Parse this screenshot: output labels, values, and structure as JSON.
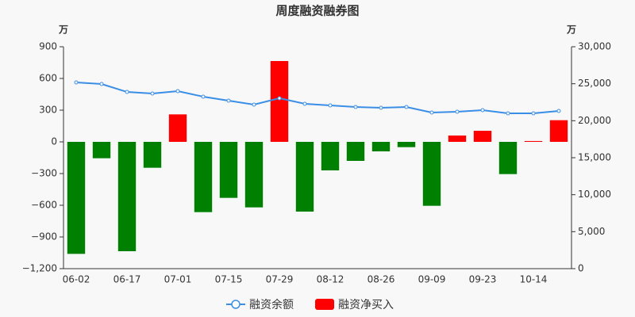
{
  "chart_data": {
    "type": "bar_line",
    "title": "周度融资融券图",
    "y_unit": "万",
    "y2_unit": "万",
    "categories": [
      "06-02",
      null,
      "06-17",
      null,
      "07-01",
      null,
      "07-15",
      null,
      "07-29",
      null,
      "08-12",
      null,
      "08-26",
      null,
      "09-09",
      null,
      "09-23",
      null,
      "10-14",
      null
    ],
    "series": [
      {
        "name": "融资余额",
        "type": "line",
        "axis": "y2",
        "color": "#3a8ee6",
        "values": [
          25180,
          24960,
          23890,
          23680,
          24000,
          23250,
          22710,
          22180,
          23040,
          22290,
          22070,
          21860,
          21750,
          21860,
          21110,
          21210,
          21430,
          21000,
          21000,
          21320
        ]
      },
      {
        "name": "融资净买入",
        "type": "bar",
        "axis": "y",
        "color": "#ff0000",
        "negative_color": "#008000",
        "values": [
          -1060,
          -155,
          -1035,
          -245,
          260,
          -665,
          -530,
          -620,
          765,
          -660,
          -270,
          -180,
          -90,
          -50,
          -605,
          60,
          105,
          -305,
          8,
          205
        ]
      }
    ],
    "ylim": [
      -1200,
      900
    ],
    "yticks": [
      {
        "value": -1200,
        "label": "−1,200"
      },
      {
        "value": -900,
        "label": "−900"
      },
      {
        "value": -600,
        "label": "−600"
      },
      {
        "value": -300,
        "label": "−300"
      },
      0,
      300,
      600,
      900
    ],
    "y2lim": [
      0,
      30000
    ],
    "y2ticks": [
      0,
      {
        "value": 5000,
        "label": "5,000"
      },
      {
        "value": 10000,
        "label": "10,000"
      },
      {
        "value": 15000,
        "label": "15,000"
      },
      {
        "value": 20000,
        "label": "20,000"
      },
      {
        "value": 25000,
        "label": "25,000"
      },
      {
        "value": 30000,
        "label": "30,000"
      }
    ],
    "grid": false
  }
}
